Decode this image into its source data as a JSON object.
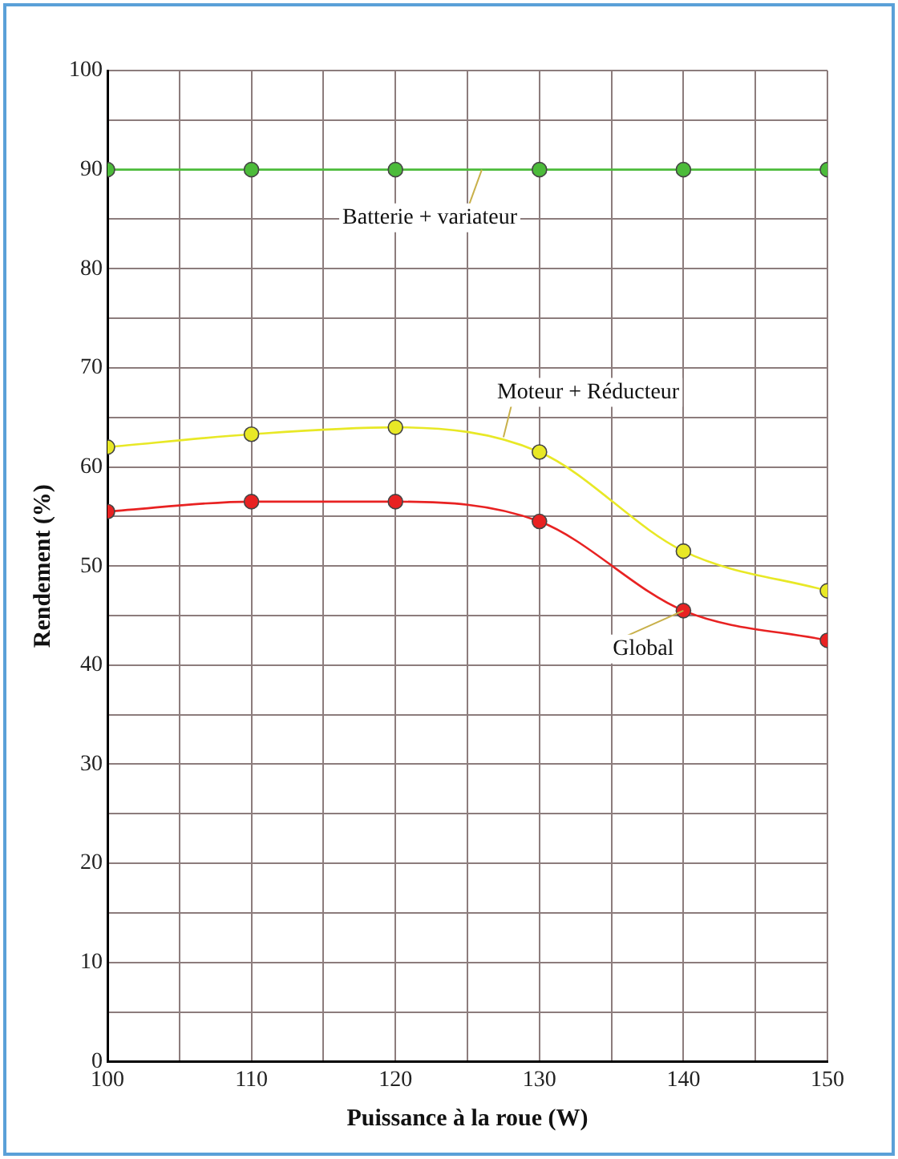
{
  "chart_data": {
    "type": "line",
    "xlabel": "Puissance à la roue (W)",
    "ylabel": "Rendement (%)",
    "x": [
      100,
      110,
      120,
      130,
      140,
      150
    ],
    "series": [
      {
        "color": "#4cbb3a",
        "values": [
          90,
          90,
          90,
          90,
          90,
          90
        ]
      },
      {
        "color": "#e8e826",
        "values": [
          62,
          63.3,
          64,
          61.5,
          51.5,
          47.5
        ]
      },
      {
        "color": "#e82222",
        "values": [
          55.5,
          56.5,
          56.5,
          54.5,
          45.5,
          42.5
        ]
      }
    ],
    "xlim": [
      100,
      150
    ],
    "xticks": [
      100,
      {
        "value": 105,
        "label": null
      },
      110,
      {
        "value": 115,
        "label": null
      },
      120,
      {
        "value": 125,
        "label": null
      },
      130,
      {
        "value": 135,
        "label": null
      },
      140,
      {
        "value": 145,
        "label": null
      },
      150
    ],
    "ylim": [
      0,
      100
    ],
    "yticks": [
      0,
      {
        "value": 5,
        "label": null
      },
      10,
      {
        "value": 15,
        "label": null
      },
      20,
      {
        "value": 25,
        "label": null
      },
      30,
      {
        "value": 35,
        "label": null
      },
      40,
      {
        "value": 45,
        "label": null
      },
      50,
      {
        "value": 55,
        "label": null
      },
      60,
      {
        "value": 65,
        "label": null
      },
      70,
      {
        "value": 75,
        "label": null
      },
      80,
      {
        "value": 85,
        "label": null
      },
      90,
      {
        "value": 95,
        "label": null
      },
      100
    ],
    "grid": true,
    "marker": "circle",
    "line_style": "solid",
    "annotations": [
      {
        "text": "Batterie + variateur",
        "x": 126,
        "y": 90
      },
      {
        "text": "Moteur + Réducteur",
        "x": 127.5,
        "y": 63
      },
      {
        "text": "Global",
        "x": 140,
        "y": 45.5
      }
    ]
  }
}
